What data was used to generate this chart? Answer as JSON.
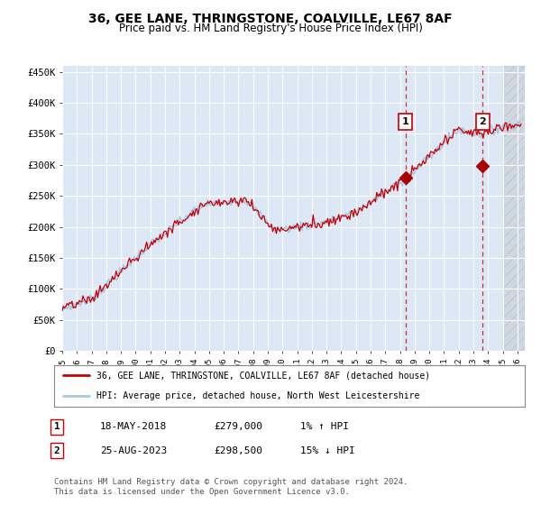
{
  "title": "36, GEE LANE, THRINGSTONE, COALVILLE, LE67 8AF",
  "subtitle": "Price paid vs. HM Land Registry's House Price Index (HPI)",
  "ylabel_ticks": [
    "£0",
    "£50K",
    "£100K",
    "£150K",
    "£200K",
    "£250K",
    "£300K",
    "£350K",
    "£400K",
    "£450K"
  ],
  "ytick_values": [
    0,
    50000,
    100000,
    150000,
    200000,
    250000,
    300000,
    350000,
    400000,
    450000
  ],
  "ylim": [
    0,
    460000
  ],
  "xlim_start": 1995.0,
  "xlim_end": 2026.5,
  "hpi_color": "#a8c8e8",
  "price_color": "#cc0000",
  "marker_color": "#aa0000",
  "sale1_x": 2018.37,
  "sale1_y": 279000,
  "sale2_x": 2023.64,
  "sale2_y": 298500,
  "legend_line1": "36, GEE LANE, THRINGSTONE, COALVILLE, LE67 8AF (detached house)",
  "legend_line2": "HPI: Average price, detached house, North West Leicestershire",
  "table_row1": [
    "1",
    "18-MAY-2018",
    "£279,000",
    "1% ↑ HPI"
  ],
  "table_row2": [
    "2",
    "25-AUG-2023",
    "£298,500",
    "15% ↓ HPI"
  ],
  "footnote1": "Contains HM Land Registry data © Crown copyright and database right 2024.",
  "footnote2": "This data is licensed under the Open Government Licence v3.0.",
  "background_color": "#ffffff",
  "plot_bg_color": "#dce8f5",
  "grid_color": "#ffffff",
  "title_fontsize": 10,
  "subtitle_fontsize": 8.5
}
